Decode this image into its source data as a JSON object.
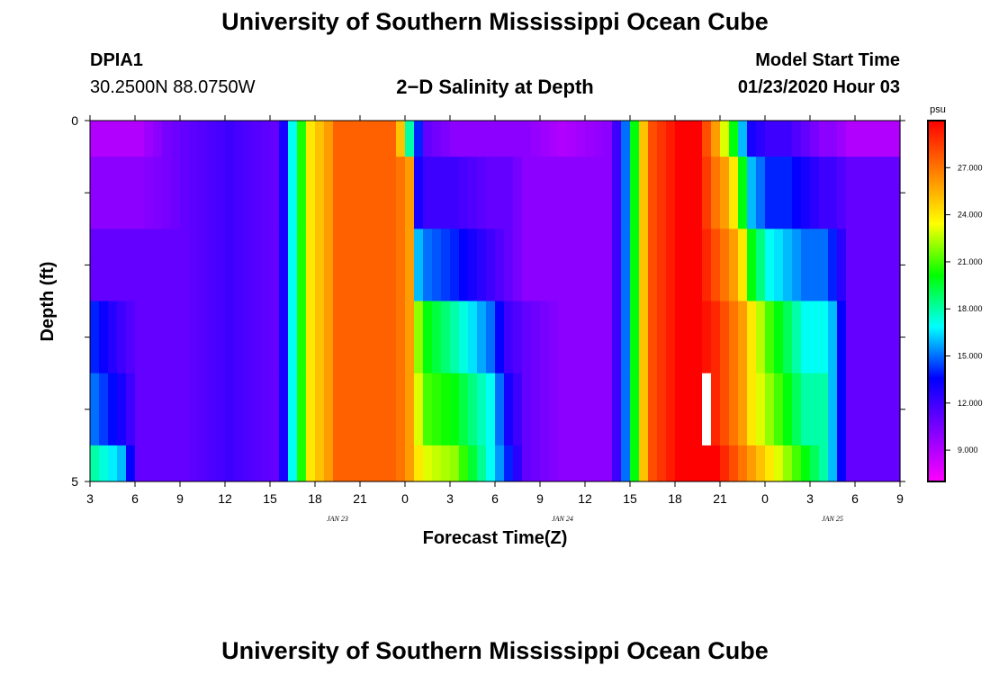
{
  "header": {
    "title": "University of Southern Mississippi Ocean Cube",
    "station": "DPIA1",
    "coords": "30.2500N 88.0750W",
    "plot_title": "2−D Salinity at Depth",
    "model_label": "Model Start Time",
    "model_time": "01/23/2020 Hour 03"
  },
  "footer": {
    "title": "University of Southern Mississippi Ocean Cube"
  },
  "chart_data": {
    "type": "heatmap",
    "title": "2-D Salinity at Depth",
    "xlabel": "Forecast Time(Z)",
    "ylabel": "Depth (ft)",
    "x_tick_labels": [
      "3",
      "6",
      "9",
      "12",
      "15",
      "18",
      "21",
      "0",
      "3",
      "6",
      "9",
      "12",
      "15",
      "18",
      "21",
      "0",
      "3",
      "6",
      "9"
    ],
    "x_date_labels": [
      {
        "text": "JAN 23",
        "tick_index": 5.5
      },
      {
        "text": "JAN 24",
        "tick_index": 10.5
      },
      {
        "text": "JAN 25",
        "tick_index": 16.5
      }
    ],
    "y_tick_labels": [
      {
        "value": 0,
        "label": "0"
      },
      {
        "value": 5,
        "label": "5"
      }
    ],
    "ylim": [
      0,
      5
    ],
    "colorbar": {
      "unit": "psu",
      "range": [
        7,
        30
      ],
      "tick_values": [
        9,
        12,
        15,
        18,
        21,
        24,
        27
      ],
      "tick_labels": [
        "9.000",
        "12.000",
        "15.000",
        "18.000",
        "21.000",
        "24.000",
        "27.000"
      ],
      "colors": [
        "#ff00ff",
        "#8000ff",
        "#0000ff",
        "#00ffff",
        "#00ff00",
        "#ffff00",
        "#ff8000",
        "#ff0000"
      ]
    },
    "missing_cell": {
      "hour": 68,
      "layer": 4
    },
    "anchors": [
      [
        0,
        [
          9,
          10,
          11,
          14,
          15,
          18
        ]
      ],
      [
        3,
        [
          9,
          10,
          11,
          12,
          13,
          16
        ]
      ],
      [
        5,
        [
          9,
          10,
          11,
          11,
          11,
          11
        ]
      ],
      [
        8,
        [
          10.5,
          10.5,
          11,
          11,
          11,
          11
        ]
      ],
      [
        10,
        [
          11,
          11,
          11,
          11,
          11,
          11
        ]
      ],
      [
        15,
        [
          12,
          12,
          12,
          12,
          12,
          12
        ]
      ],
      [
        20,
        [
          11,
          11,
          11,
          11,
          11,
          11
        ]
      ],
      [
        21,
        [
          13,
          13,
          13,
          13,
          13,
          13
        ]
      ],
      [
        22,
        [
          17,
          17,
          17,
          17,
          17,
          17
        ]
      ],
      [
        24,
        [
          24,
          24,
          24,
          24,
          24,
          24
        ]
      ],
      [
        26,
        [
          26,
          26,
          26,
          26,
          26,
          26
        ]
      ],
      [
        27,
        [
          27.5,
          27.5,
          27.5,
          27.5,
          27.5,
          27.5
        ]
      ],
      [
        33,
        [
          27.5,
          27.5,
          27.5,
          27.5,
          27.5,
          27.5
        ]
      ],
      [
        34,
        [
          25,
          27,
          27,
          27,
          27,
          27
        ]
      ],
      [
        35,
        [
          18,
          26,
          26,
          26,
          26,
          26
        ]
      ],
      [
        36,
        [
          14,
          13,
          16,
          22,
          23,
          24
        ]
      ],
      [
        37,
        [
          11,
          12,
          15,
          20,
          21,
          23
        ]
      ],
      [
        40,
        [
          10,
          12,
          14,
          18,
          20,
          22
        ]
      ],
      [
        44,
        [
          10,
          11,
          12,
          15,
          17,
          17
        ]
      ],
      [
        46,
        [
          10,
          11,
          11,
          12,
          13,
          14
        ]
      ],
      [
        48,
        [
          10,
          10,
          10,
          11,
          11,
          11
        ]
      ],
      [
        52,
        [
          9,
          10,
          10,
          10,
          10,
          10
        ]
      ],
      [
        57,
        [
          10,
          10,
          10,
          10,
          10,
          10
        ]
      ],
      [
        58,
        [
          12,
          12,
          12,
          12,
          12,
          12
        ]
      ],
      [
        59,
        [
          15,
          15,
          15,
          15,
          15,
          15
        ]
      ],
      [
        60,
        [
          20,
          20,
          20,
          20,
          20,
          20
        ]
      ],
      [
        61,
        [
          25,
          25,
          25,
          25,
          25,
          25
        ]
      ],
      [
        62,
        [
          28,
          28,
          28,
          28,
          28,
          28
        ]
      ],
      [
        65,
        [
          30,
          30,
          30,
          30,
          30,
          30
        ]
      ],
      [
        67,
        [
          30,
          30,
          30,
          30,
          30,
          30
        ]
      ],
      [
        69,
        [
          26,
          27,
          28,
          29,
          29,
          30
        ]
      ],
      [
        70,
        [
          23,
          26,
          27,
          28,
          28,
          29
        ]
      ],
      [
        71,
        [
          20,
          24,
          26,
          27,
          27,
          28
        ]
      ],
      [
        72,
        [
          16,
          20,
          24,
          26,
          26,
          27
        ]
      ],
      [
        73,
        [
          13,
          16,
          20,
          24,
          24,
          26
        ]
      ],
      [
        75,
        [
          12,
          14,
          17,
          21,
          22,
          24
        ]
      ],
      [
        77,
        [
          12,
          14,
          16,
          19,
          20,
          22
        ]
      ],
      [
        79,
        [
          11,
          13,
          15,
          17,
          18,
          20
        ]
      ],
      [
        81,
        [
          10,
          12,
          15,
          17,
          18,
          18
        ]
      ],
      [
        82,
        [
          10,
          12,
          14,
          16,
          16,
          16
        ]
      ],
      [
        84,
        [
          9,
          11,
          11,
          11,
          11,
          11
        ]
      ]
    ]
  }
}
